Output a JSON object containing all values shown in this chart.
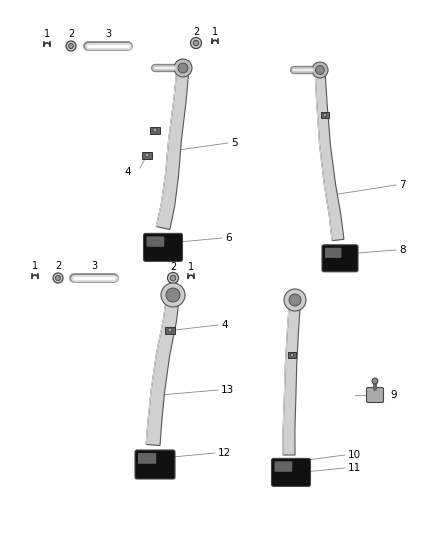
{
  "bg_color": "#ffffff",
  "figsize": [
    4.38,
    5.33
  ],
  "dpi": 100,
  "arm_color": "#d8d8d8",
  "arm_edge": "#555555",
  "pad_dark": "#1a1a1a",
  "pad_light": "#aaaaaa",
  "pivot_color": "#cccccc",
  "bracket_color": "#888888",
  "callout_color": "#888888",
  "small_parts": {
    "clip_color": "#555555",
    "washer_color": "#bbbbbb",
    "rod_color": "#cccccc"
  }
}
